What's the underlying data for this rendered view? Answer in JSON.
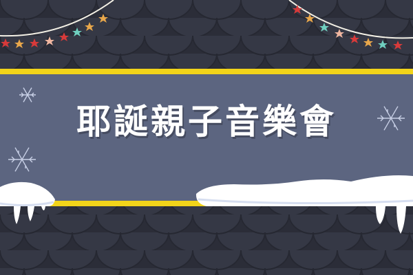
{
  "banner": {
    "title": "耶誕親子音樂會"
  },
  "colors": {
    "background": "#2b2d38",
    "scale_light": "#353845",
    "banner": "#5c6580",
    "stripe": "#f2d41a",
    "snow": "#ffffff",
    "snow_shadow": "#d6def0"
  },
  "decorations": {
    "left_string_icon": "christmas-lights-icon",
    "right_string_icon": "christmas-lights-icon",
    "snowflake_icon": "snowflake-icon"
  }
}
